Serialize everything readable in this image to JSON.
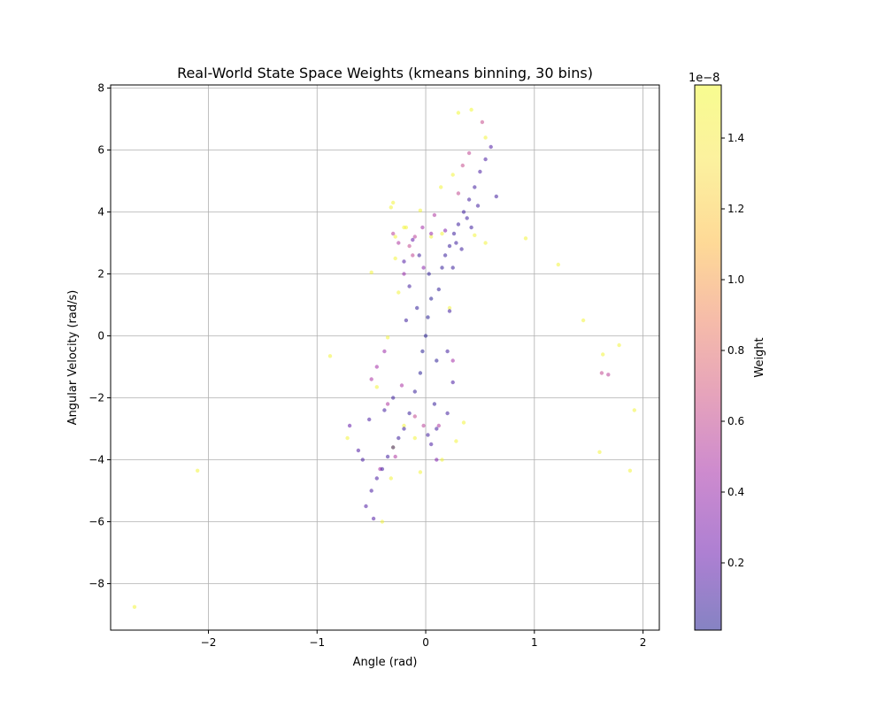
{
  "chart_data": {
    "type": "scatter",
    "title": "Real-World State Space Weights (kmeans binning, 30 bins)",
    "xlabel": "Angle (rad)",
    "ylabel": "Angular Velocity (rad/s)",
    "xlim": [
      -2.9,
      2.15
    ],
    "ylim": [
      -9.5,
      8.1
    ],
    "xticks": [
      -2,
      -1,
      0,
      1,
      2
    ],
    "xtick_labels": [
      "−2",
      "−1",
      "0",
      "1",
      "2"
    ],
    "yticks": [
      -8,
      -6,
      -4,
      -2,
      0,
      2,
      4,
      6,
      8
    ],
    "ytick_labels": [
      "−8",
      "−6",
      "−4",
      "−2",
      "0",
      "2",
      "4",
      "6",
      "8"
    ],
    "grid": true,
    "colormap": "plasma",
    "marker_alpha": 0.5,
    "colorbar": {
      "label": "Weight",
      "exponent_label": "1e−8",
      "range": [
        0.01,
        1.55
      ],
      "ticks": [
        0.2,
        0.4,
        0.6,
        0.8,
        1.0,
        1.2,
        1.4
      ],
      "tick_labels": [
        "0.2",
        "0.4",
        "0.6",
        "0.8",
        "1.0",
        "1.2",
        "1.4"
      ]
    },
    "series": [
      {
        "points": [
          [
            0.0,
            0.0,
            0.02
          ],
          [
            0.02,
            0.6,
            0.02
          ],
          [
            -0.03,
            -0.5,
            0.02
          ],
          [
            0.05,
            1.2,
            0.03
          ],
          [
            -0.05,
            -1.2,
            0.03
          ],
          [
            0.03,
            2.0,
            0.05
          ],
          [
            -0.06,
            2.6,
            0.08
          ],
          [
            0.08,
            -2.2,
            0.06
          ],
          [
            0.12,
            1.5,
            0.05
          ],
          [
            -0.1,
            -1.8,
            0.06
          ],
          [
            0.1,
            -0.8,
            0.04
          ],
          [
            -0.08,
            0.9,
            0.05
          ],
          [
            0.15,
            2.2,
            0.06
          ],
          [
            0.18,
            2.6,
            0.07
          ],
          [
            0.22,
            2.9,
            0.07
          ],
          [
            0.26,
            3.3,
            0.08
          ],
          [
            0.3,
            3.6,
            0.08
          ],
          [
            0.35,
            4.0,
            0.09
          ],
          [
            0.4,
            4.4,
            0.1
          ],
          [
            0.45,
            4.8,
            0.1
          ],
          [
            0.5,
            5.3,
            0.12
          ],
          [
            0.55,
            5.7,
            0.12
          ],
          [
            0.6,
            6.1,
            0.14
          ],
          [
            0.65,
            4.5,
            0.1
          ],
          [
            0.48,
            4.2,
            0.1
          ],
          [
            0.38,
            3.8,
            0.09
          ],
          [
            0.28,
            3.0,
            0.08
          ],
          [
            0.42,
            3.5,
            0.09
          ],
          [
            0.33,
            2.8,
            0.08
          ],
          [
            0.25,
            2.2,
            0.07
          ],
          [
            -0.15,
            -2.5,
            0.07
          ],
          [
            -0.2,
            -3.0,
            0.08
          ],
          [
            -0.25,
            -3.3,
            0.08
          ],
          [
            -0.3,
            -3.6,
            0.09
          ],
          [
            -0.35,
            -3.9,
            0.1
          ],
          [
            -0.4,
            -4.3,
            0.1
          ],
          [
            -0.45,
            -4.6,
            0.12
          ],
          [
            -0.5,
            -5.0,
            0.12
          ],
          [
            -0.55,
            -5.5,
            0.14
          ],
          [
            -0.48,
            -5.9,
            0.15
          ],
          [
            -0.58,
            -4.0,
            0.12
          ],
          [
            -0.62,
            -3.7,
            0.14
          ],
          [
            -0.7,
            -2.9,
            0.2
          ],
          [
            -0.52,
            -2.7,
            0.12
          ],
          [
            -0.38,
            -2.4,
            0.1
          ],
          [
            -0.3,
            -2.0,
            0.08
          ],
          [
            0.02,
            -3.2,
            0.1
          ],
          [
            0.05,
            -3.5,
            0.12
          ],
          [
            0.1,
            -3.0,
            0.1
          ],
          [
            0.2,
            -2.5,
            0.1
          ],
          [
            0.25,
            -1.5,
            0.12
          ],
          [
            0.2,
            -0.5,
            0.1
          ],
          [
            0.22,
            0.8,
            0.1
          ],
          [
            -0.18,
            0.5,
            0.08
          ],
          [
            -0.15,
            1.6,
            0.1
          ],
          [
            -0.2,
            2.4,
            0.15
          ],
          [
            -0.12,
            3.1,
            0.2
          ],
          [
            0.05,
            3.3,
            0.4
          ],
          [
            -0.03,
            3.5,
            0.45
          ],
          [
            0.08,
            3.9,
            0.5
          ],
          [
            -0.1,
            3.2,
            0.55
          ],
          [
            -0.15,
            2.9,
            0.6
          ],
          [
            -0.12,
            2.6,
            0.58
          ],
          [
            -0.02,
            -2.9,
            0.55
          ],
          [
            -0.1,
            -2.6,
            0.6
          ],
          [
            0.12,
            -2.9,
            0.5
          ],
          [
            -0.22,
            -1.6,
            0.48
          ],
          [
            0.25,
            -0.8,
            0.45
          ],
          [
            0.3,
            4.6,
            0.6
          ],
          [
            0.34,
            5.5,
            0.62
          ],
          [
            0.4,
            5.9,
            0.58
          ],
          [
            0.52,
            6.9,
            0.62
          ],
          [
            -0.45,
            -1.0,
            0.45
          ],
          [
            -0.38,
            -0.5,
            0.42
          ],
          [
            -0.5,
            -1.4,
            0.48
          ],
          [
            -0.35,
            -2.2,
            0.5
          ],
          [
            -0.28,
            -3.9,
            0.5
          ],
          [
            -0.42,
            -4.3,
            0.45
          ],
          [
            0.1,
            -4.0,
            0.3
          ],
          [
            -0.02,
            2.2,
            0.35
          ],
          [
            0.18,
            3.4,
            0.3
          ],
          [
            -0.3,
            3.3,
            0.55
          ],
          [
            -0.25,
            3.0,
            0.5
          ],
          [
            -0.2,
            2.0,
            0.4
          ],
          [
            0.42,
            7.3,
            1.55
          ],
          [
            0.3,
            7.2,
            1.55
          ],
          [
            0.55,
            6.4,
            1.5
          ],
          [
            0.25,
            5.2,
            1.5
          ],
          [
            0.14,
            4.8,
            1.5
          ],
          [
            -0.3,
            4.3,
            1.5
          ],
          [
            -0.32,
            4.15,
            1.5
          ],
          [
            -0.05,
            4.05,
            1.5
          ],
          [
            -0.2,
            3.5,
            1.5
          ],
          [
            -0.28,
            3.2,
            1.5
          ],
          [
            -0.28,
            2.5,
            1.5
          ],
          [
            -0.5,
            2.05,
            1.5
          ],
          [
            -0.25,
            1.4,
            1.5
          ],
          [
            0.22,
            0.9,
            1.5
          ],
          [
            -0.35,
            -0.05,
            1.5
          ],
          [
            -0.2,
            -2.9,
            1.5
          ],
          [
            -0.1,
            -3.3,
            1.5
          ],
          [
            -0.3,
            -3.6,
            1.5
          ],
          [
            0.35,
            -2.8,
            1.5
          ],
          [
            0.28,
            -3.4,
            1.5
          ],
          [
            0.15,
            -4.0,
            1.5
          ],
          [
            -0.05,
            -4.4,
            1.5
          ],
          [
            -0.32,
            -4.6,
            1.5
          ],
          [
            -0.4,
            -6.0,
            1.5
          ],
          [
            -0.72,
            -3.3,
            1.5
          ],
          [
            -0.45,
            -1.65,
            1.5
          ],
          [
            0.55,
            3.0,
            1.5
          ],
          [
            0.92,
            3.15,
            1.5
          ],
          [
            1.22,
            2.3,
            1.5
          ],
          [
            1.45,
            0.5,
            1.5
          ],
          [
            1.78,
            -0.3,
            1.5
          ],
          [
            1.63,
            -0.6,
            1.5
          ],
          [
            1.62,
            -1.2,
            0.6
          ],
          [
            1.68,
            -1.25,
            0.55
          ],
          [
            1.92,
            -2.4,
            1.5
          ],
          [
            1.6,
            -3.75,
            1.5
          ],
          [
            1.88,
            -4.35,
            1.5
          ],
          [
            -0.88,
            -0.65,
            1.5
          ],
          [
            -2.1,
            -4.35,
            1.5
          ],
          [
            -2.68,
            -8.75,
            1.5
          ],
          [
            0.45,
            3.25,
            1.5
          ],
          [
            0.15,
            3.3,
            1.5
          ],
          [
            -0.18,
            3.5,
            1.5
          ],
          [
            0.05,
            3.2,
            1.5
          ]
        ]
      }
    ]
  }
}
